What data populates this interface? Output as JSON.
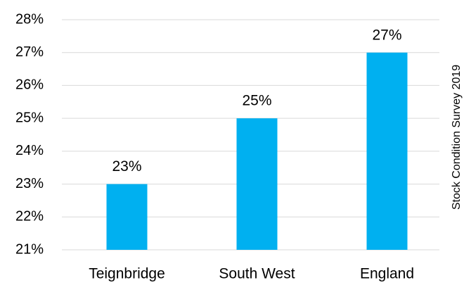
{
  "chart_data": {
    "type": "bar",
    "categories": [
      "Teignbridge",
      "South West",
      "England"
    ],
    "values": [
      23,
      25,
      27
    ],
    "value_labels": [
      "23%",
      "25%",
      "27%"
    ],
    "color": "#00b0f0",
    "ylim": [
      21,
      28
    ],
    "yticks": [
      {
        "value": 21,
        "label": "21%"
      },
      {
        "value": 22,
        "label": "22%"
      },
      {
        "value": 23,
        "label": "23%"
      },
      {
        "value": 24,
        "label": "24%"
      },
      {
        "value": 25,
        "label": "25%"
      },
      {
        "value": 26,
        "label": "26%"
      },
      {
        "value": 27,
        "label": "27%"
      },
      {
        "value": 28,
        "label": "28%"
      }
    ],
    "grid": true,
    "annotation": "Stock Condition Survey 2019"
  }
}
